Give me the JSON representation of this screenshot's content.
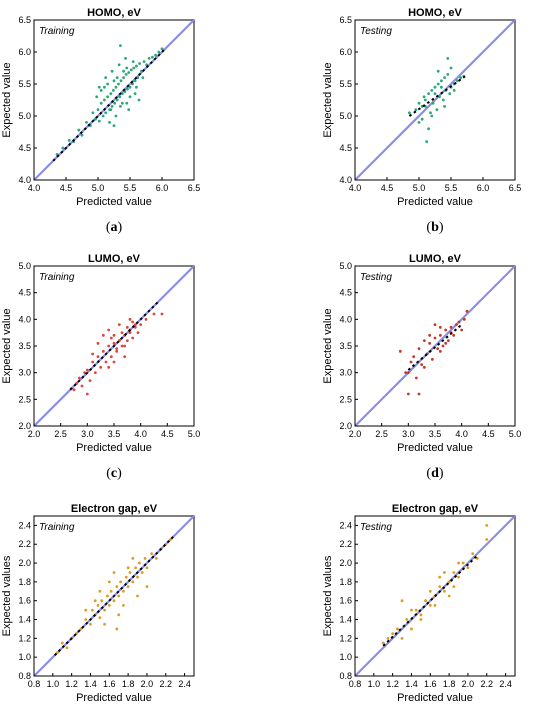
{
  "chart_data": [
    {
      "type": "scatter",
      "letter_before": "(",
      "letter_bold": "a",
      "letter_after": ")",
      "title": "HOMO, eV",
      "annotation": "Training",
      "xlabel": "Predicted value",
      "ylabel": "Expected value",
      "xlim": [
        4.0,
        6.5
      ],
      "ylim": [
        4.0,
        6.5
      ],
      "xticks": [
        "4.0",
        "4.5",
        "5.0",
        "5.5",
        "6.0",
        "6.5"
      ],
      "yticks": [
        "4.0",
        "4.5",
        "5.0",
        "5.5",
        "6.0",
        "6.5"
      ],
      "point_color": "#2aa876",
      "reference_line": {
        "color": "#8a8ee6",
        "from": [
          4.0,
          4.0
        ],
        "to": [
          6.5,
          6.5
        ]
      },
      "fit_line": {
        "color": "#000000",
        "from": [
          4.3,
          4.3
        ],
        "to": [
          6.05,
          6.05
        ]
      },
      "series": [
        {
          "x": [
            4.36,
            4.45,
            4.55,
            4.62,
            4.7,
            4.75,
            4.82,
            4.88,
            4.92,
            4.96,
            5.0,
            5.02,
            5.05,
            5.08,
            5.1,
            5.12,
            5.15,
            5.18,
            5.2,
            5.22,
            5.24,
            5.26,
            5.28,
            5.3,
            5.32,
            5.34,
            5.36,
            5.38,
            5.4,
            5.42,
            5.44,
            5.46,
            5.48,
            5.5,
            5.52,
            5.54,
            5.56,
            5.58,
            5.6,
            5.62,
            5.65,
            5.68,
            5.72,
            5.76,
            5.8,
            5.85,
            5.9,
            5.95,
            6.0,
            5.05,
            5.1,
            5.15,
            5.2,
            5.25,
            5.3,
            5.35,
            5.4,
            5.45,
            5.5,
            5.55,
            5.6,
            5.22,
            5.28,
            5.33,
            5.38,
            5.43,
            5.18,
            5.48,
            5.12,
            5.58,
            5.02,
            5.64,
            5.35,
            5.25,
            5.45,
            4.98,
            5.7
          ],
          "y": [
            4.4,
            4.5,
            4.62,
            4.6,
            4.78,
            4.7,
            4.9,
            4.85,
            5.05,
            4.95,
            5.1,
            4.92,
            5.2,
            5.0,
            5.25,
            5.05,
            5.3,
            5.1,
            5.35,
            5.15,
            5.4,
            5.2,
            5.45,
            5.25,
            5.5,
            5.3,
            5.55,
            5.35,
            5.6,
            5.38,
            5.65,
            5.42,
            5.68,
            5.45,
            5.72,
            5.5,
            5.75,
            5.55,
            5.78,
            5.6,
            5.82,
            5.7,
            5.85,
            5.8,
            5.9,
            5.92,
            5.95,
            6.0,
            6.05,
            5.4,
            5.45,
            5.5,
            5.1,
            5.55,
            5.6,
            5.15,
            5.7,
            5.2,
            5.3,
            5.85,
            5.45,
            5.7,
            5.0,
            5.8,
            5.2,
            5.9,
            4.9,
            5.1,
            5.6,
            5.35,
            5.45,
            5.25,
            6.1,
            4.85,
            5.75,
            5.3,
            5.6
          ]
        }
      ]
    },
    {
      "type": "scatter",
      "letter_before": "(",
      "letter_bold": "b",
      "letter_after": ")",
      "title": "HOMO, eV",
      "annotation": "Testing",
      "xlabel": "Predicted value",
      "ylabel": "Expected value",
      "xlim": [
        4.0,
        6.5
      ],
      "ylim": [
        4.0,
        6.5
      ],
      "xticks": [
        "4.0",
        "4.5",
        "5.0",
        "5.5",
        "6.0",
        "6.5"
      ],
      "yticks": [
        "4.0",
        "4.5",
        "5.0",
        "5.5",
        "6.0",
        "6.5"
      ],
      "point_color": "#2aa876",
      "reference_line": {
        "color": "#8a8ee6",
        "from": [
          4.0,
          4.0
        ],
        "to": [
          6.5,
          6.5
        ]
      },
      "fit_line": {
        "color": "#000000",
        "from": [
          4.85,
          5.0
        ],
        "to": [
          5.72,
          5.62
        ]
      },
      "series": [
        {
          "x": [
            4.85,
            4.95,
            5.0,
            5.05,
            5.08,
            5.1,
            5.12,
            5.15,
            5.18,
            5.2,
            5.22,
            5.25,
            5.28,
            5.3,
            5.32,
            5.35,
            5.38,
            5.4,
            5.42,
            5.45,
            5.48,
            5.5,
            5.55,
            5.6,
            5.65,
            5.7,
            5.1,
            5.2,
            5.3,
            5.4,
            5.5,
            5.15,
            5.25,
            5.35,
            5.45,
            5.05,
            5.55,
            5.0
          ],
          "y": [
            5.05,
            5.1,
            5.2,
            4.95,
            5.3,
            5.15,
            4.6,
            5.35,
            5.05,
            5.4,
            5.2,
            5.45,
            5.1,
            5.5,
            5.3,
            5.55,
            5.25,
            5.6,
            5.4,
            5.9,
            5.35,
            5.45,
            5.5,
            5.55,
            5.6,
            5.62,
            5.25,
            5.0,
            5.7,
            5.15,
            5.75,
            4.8,
            5.35,
            5.45,
            5.65,
            5.15,
            5.4,
            4.9
          ]
        }
      ]
    },
    {
      "type": "scatter",
      "letter_before": "(",
      "letter_bold": "c",
      "letter_after": ")",
      "title": "LUMO, eV",
      "annotation": "Training",
      "xlabel": "Predicted value",
      "ylabel": "Expected value",
      "xlim": [
        2.0,
        5.0
      ],
      "ylim": [
        2.0,
        5.0
      ],
      "xticks": [
        "2.0",
        "2.5",
        "3.0",
        "3.5",
        "4.0",
        "4.5",
        "5.0"
      ],
      "yticks": [
        "2.0",
        "2.5",
        "3.0",
        "3.5",
        "4.0",
        "4.5",
        "5.0"
      ],
      "point_color": "#e0463a",
      "reference_line": {
        "color": "#8a8ee6",
        "from": [
          2.0,
          2.0
        ],
        "to": [
          5.0,
          5.0
        ]
      },
      "fit_line": {
        "color": "#000000",
        "from": [
          2.68,
          2.68
        ],
        "to": [
          4.35,
          4.35
        ]
      },
      "series": [
        {
          "x": [
            2.7,
            2.75,
            2.8,
            2.85,
            2.9,
            2.95,
            3.0,
            3.05,
            3.1,
            3.15,
            3.2,
            3.25,
            3.3,
            3.35,
            3.4,
            3.45,
            3.5,
            3.55,
            3.6,
            3.65,
            3.7,
            3.75,
            3.8,
            3.85,
            3.9,
            3.95,
            4.0,
            4.1,
            4.25,
            4.4,
            3.3,
            3.4,
            3.5,
            3.6,
            3.7,
            3.8,
            3.45,
            3.55,
            3.65,
            3.75,
            3.2,
            3.1,
            3.0,
            3.85,
            3.6,
            3.5,
            3.4,
            3.7,
            3.8,
            3.9
          ],
          "y": [
            2.7,
            2.68,
            2.8,
            2.9,
            2.75,
            3.0,
            3.05,
            2.85,
            3.2,
            3.0,
            3.3,
            3.1,
            3.4,
            3.2,
            3.5,
            3.3,
            3.55,
            3.4,
            3.6,
            3.5,
            3.7,
            3.6,
            3.8,
            3.65,
            3.85,
            3.75,
            3.9,
            4.0,
            4.1,
            4.1,
            3.7,
            3.8,
            3.2,
            3.9,
            3.3,
            4.0,
            3.65,
            3.45,
            3.75,
            3.85,
            3.55,
            3.35,
            2.6,
            3.95,
            3.6,
            3.7,
            3.1,
            3.5,
            3.75,
            3.9
          ]
        }
      ]
    },
    {
      "type": "scatter",
      "letter_before": "(",
      "letter_bold": "d",
      "letter_after": ")",
      "title": "LUMO, eV",
      "annotation": "Testing",
      "xlabel": "Predicted value",
      "ylabel": "Expected value",
      "xlim": [
        2.0,
        5.0
      ],
      "ylim": [
        2.0,
        5.0
      ],
      "xticks": [
        "2.0",
        "2.5",
        "3.0",
        "3.5",
        "4.0",
        "4.5",
        "5.0"
      ],
      "yticks": [
        "2.0",
        "2.5",
        "3.0",
        "3.5",
        "4.0",
        "4.5",
        "5.0"
      ],
      "point_color": "#c23a2e",
      "reference_line": {
        "color": "#8a8ee6",
        "from": [
          2.0,
          2.0
        ],
        "to": [
          5.0,
          5.0
        ]
      },
      "fit_line": {
        "color": "#000000",
        "from": [
          3.0,
          3.05
        ],
        "to": [
          4.0,
          3.9
        ]
      },
      "series": [
        {
          "x": [
            2.85,
            2.95,
            3.0,
            3.05,
            3.1,
            3.15,
            3.2,
            3.25,
            3.3,
            3.35,
            3.4,
            3.45,
            3.5,
            3.55,
            3.6,
            3.65,
            3.7,
            3.75,
            3.8,
            3.85,
            3.9,
            3.95,
            4.0,
            4.05,
            4.1,
            3.2,
            3.4,
            3.6,
            3.8,
            3.5,
            3.7,
            3.3,
            3.0,
            3.6
          ],
          "y": [
            3.4,
            3.0,
            2.6,
            3.2,
            3.3,
            2.9,
            3.45,
            3.15,
            3.6,
            3.35,
            3.55,
            3.25,
            3.65,
            3.45,
            3.7,
            3.5,
            3.8,
            3.6,
            3.85,
            3.7,
            3.9,
            3.95,
            3.8,
            4.0,
            4.15,
            2.6,
            3.7,
            3.4,
            3.75,
            3.9,
            3.55,
            3.1,
            3.0,
            3.85
          ]
        }
      ]
    },
    {
      "type": "scatter",
      "letter_before": "(",
      "letter_bold": "e",
      "letter_after": ")",
      "title": "Electron gap, eV",
      "annotation": "Training",
      "xlabel": "Predicted value",
      "ylabel": "Expected values",
      "xlim": [
        0.8,
        2.5
      ],
      "ylim": [
        0.8,
        2.5
      ],
      "xticks": [
        "0.8",
        "1.0",
        "1.2",
        "1.4",
        "1.6",
        "1.8",
        "2.0",
        "2.2",
        "2.4"
      ],
      "yticks": [
        "0.8",
        "1.0",
        "1.2",
        "1.4",
        "1.6",
        "1.8",
        "2.0",
        "2.2",
        "2.4"
      ],
      "point_color": "#e09a1c",
      "reference_line": {
        "color": "#8a8ee6",
        "from": [
          0.8,
          0.8
        ],
        "to": [
          2.5,
          2.5
        ]
      },
      "fit_line": {
        "color": "#000000",
        "from": [
          1.02,
          1.02
        ],
        "to": [
          2.3,
          2.3
        ]
      },
      "series": [
        {
          "x": [
            1.05,
            1.1,
            1.15,
            1.2,
            1.25,
            1.3,
            1.35,
            1.4,
            1.42,
            1.45,
            1.48,
            1.5,
            1.52,
            1.55,
            1.58,
            1.6,
            1.62,
            1.65,
            1.68,
            1.7,
            1.72,
            1.75,
            1.78,
            1.8,
            1.82,
            1.85,
            1.88,
            1.9,
            1.92,
            1.95,
            1.98,
            2.0,
            2.05,
            2.1,
            2.15,
            2.2,
            2.25,
            1.6,
            1.7,
            1.8,
            1.5,
            1.65,
            1.75,
            1.85,
            1.55,
            1.45,
            1.9,
            2.0,
            1.35,
            1.68
          ],
          "y": [
            1.05,
            1.15,
            1.1,
            1.2,
            1.25,
            1.3,
            1.4,
            1.35,
            1.5,
            1.45,
            1.55,
            1.42,
            1.6,
            1.5,
            1.65,
            1.55,
            1.7,
            1.6,
            1.75,
            1.65,
            1.8,
            1.7,
            1.85,
            1.75,
            1.9,
            1.8,
            1.95,
            1.85,
            2.0,
            1.9,
            2.05,
            1.95,
            2.1,
            2.05,
            2.15,
            2.2,
            2.25,
            1.8,
            1.45,
            1.95,
            1.7,
            1.9,
            1.55,
            2.05,
            1.35,
            1.6,
            1.65,
            1.75,
            1.5,
            1.3
          ]
        }
      ]
    },
    {
      "type": "scatter",
      "letter_before": "(",
      "letter_bold": "f",
      "letter_after": ")",
      "title": "Electron gap, eV",
      "annotation": "Testing",
      "xlabel": "Predicted value",
      "ylabel": "Expected values",
      "xlim": [
        0.8,
        2.5
      ],
      "ylim": [
        0.8,
        2.5
      ],
      "xticks": [
        "0.8",
        "1.0",
        "1.2",
        "1.4",
        "1.6",
        "1.8",
        "2.0",
        "2.2",
        "2.4"
      ],
      "yticks": [
        "0.8",
        "1.0",
        "1.2",
        "1.4",
        "1.6",
        "1.8",
        "2.0",
        "2.2",
        "2.4"
      ],
      "point_color": "#e09a1c",
      "reference_line": {
        "color": "#8a8ee6",
        "from": [
          0.8,
          0.8
        ],
        "to": [
          2.5,
          2.5
        ]
      },
      "fit_line": {
        "color": "#000000",
        "from": [
          1.1,
          1.12
        ],
        "to": [
          2.1,
          2.08
        ]
      },
      "series": [
        {
          "x": [
            1.1,
            1.15,
            1.2,
            1.25,
            1.3,
            1.35,
            1.4,
            1.45,
            1.5,
            1.55,
            1.6,
            1.65,
            1.7,
            1.75,
            1.8,
            1.85,
            1.9,
            1.95,
            2.0,
            2.05,
            2.1,
            2.2,
            1.4,
            1.6,
            1.8,
            1.5,
            1.7,
            1.9,
            1.3,
            1.65,
            1.85,
            1.55,
            1.75,
            2.2
          ],
          "y": [
            1.15,
            1.2,
            1.25,
            1.3,
            1.6,
            1.4,
            1.3,
            1.5,
            1.45,
            1.6,
            1.55,
            1.65,
            1.75,
            1.7,
            1.8,
            1.9,
            1.85,
            2.0,
            1.95,
            2.1,
            2.05,
            2.25,
            1.5,
            1.7,
            1.65,
            1.4,
            1.85,
            2.0,
            1.2,
            1.55,
            1.75,
            1.6,
            1.9,
            2.4
          ]
        }
      ]
    }
  ]
}
